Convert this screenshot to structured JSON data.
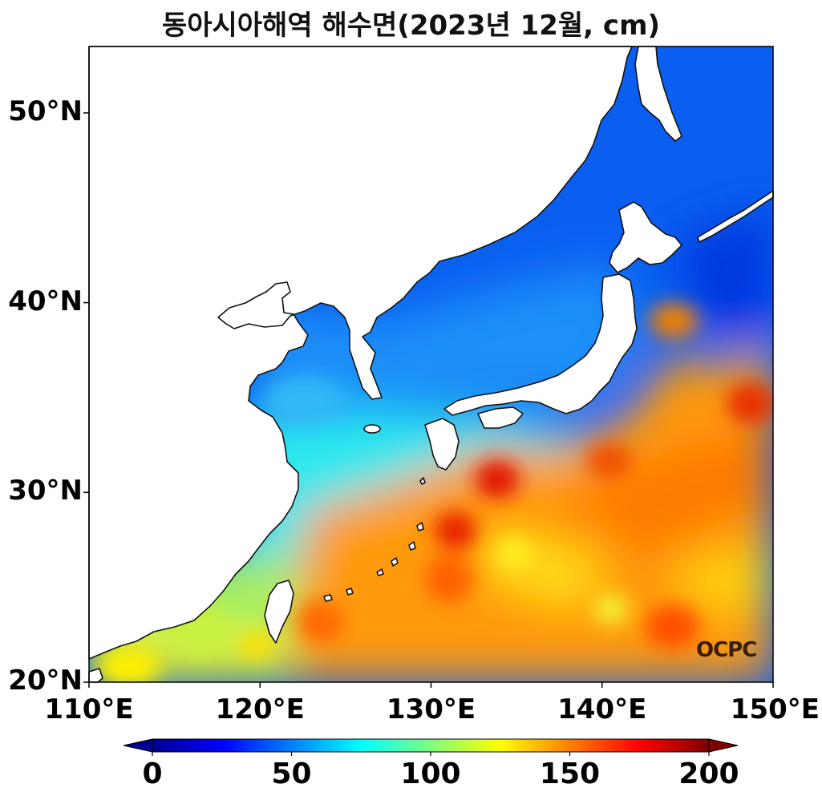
{
  "title": "동아시아해역 해수면(2023년 12월, cm)",
  "map": {
    "lon_range": [
      110,
      150
    ],
    "lat_range": [
      20,
      53.5
    ],
    "lat_ticks": [
      {
        "value": 50,
        "label": "50°N"
      },
      {
        "value": 40,
        "label": "40°N"
      },
      {
        "value": 30,
        "label": "30°N"
      },
      {
        "value": 20,
        "label": "20°N"
      }
    ],
    "lon_ticks": [
      {
        "value": 110,
        "label": "110°E"
      },
      {
        "value": 120,
        "label": "120°E"
      },
      {
        "value": 130,
        "label": "130°E"
      },
      {
        "value": 140,
        "label": "140°E"
      },
      {
        "value": 150,
        "label": "150°E"
      }
    ],
    "field": "sea surface height",
    "units": "cm"
  },
  "colorbar": {
    "min": 0,
    "max": 200,
    "extend": "both",
    "colormap": "jet",
    "ticks": [
      {
        "value": 0,
        "label": "0"
      },
      {
        "value": 50,
        "label": "50"
      },
      {
        "value": 100,
        "label": "100"
      },
      {
        "value": 150,
        "label": "150"
      },
      {
        "value": 200,
        "label": "200"
      }
    ]
  },
  "logo": "OCPC"
}
